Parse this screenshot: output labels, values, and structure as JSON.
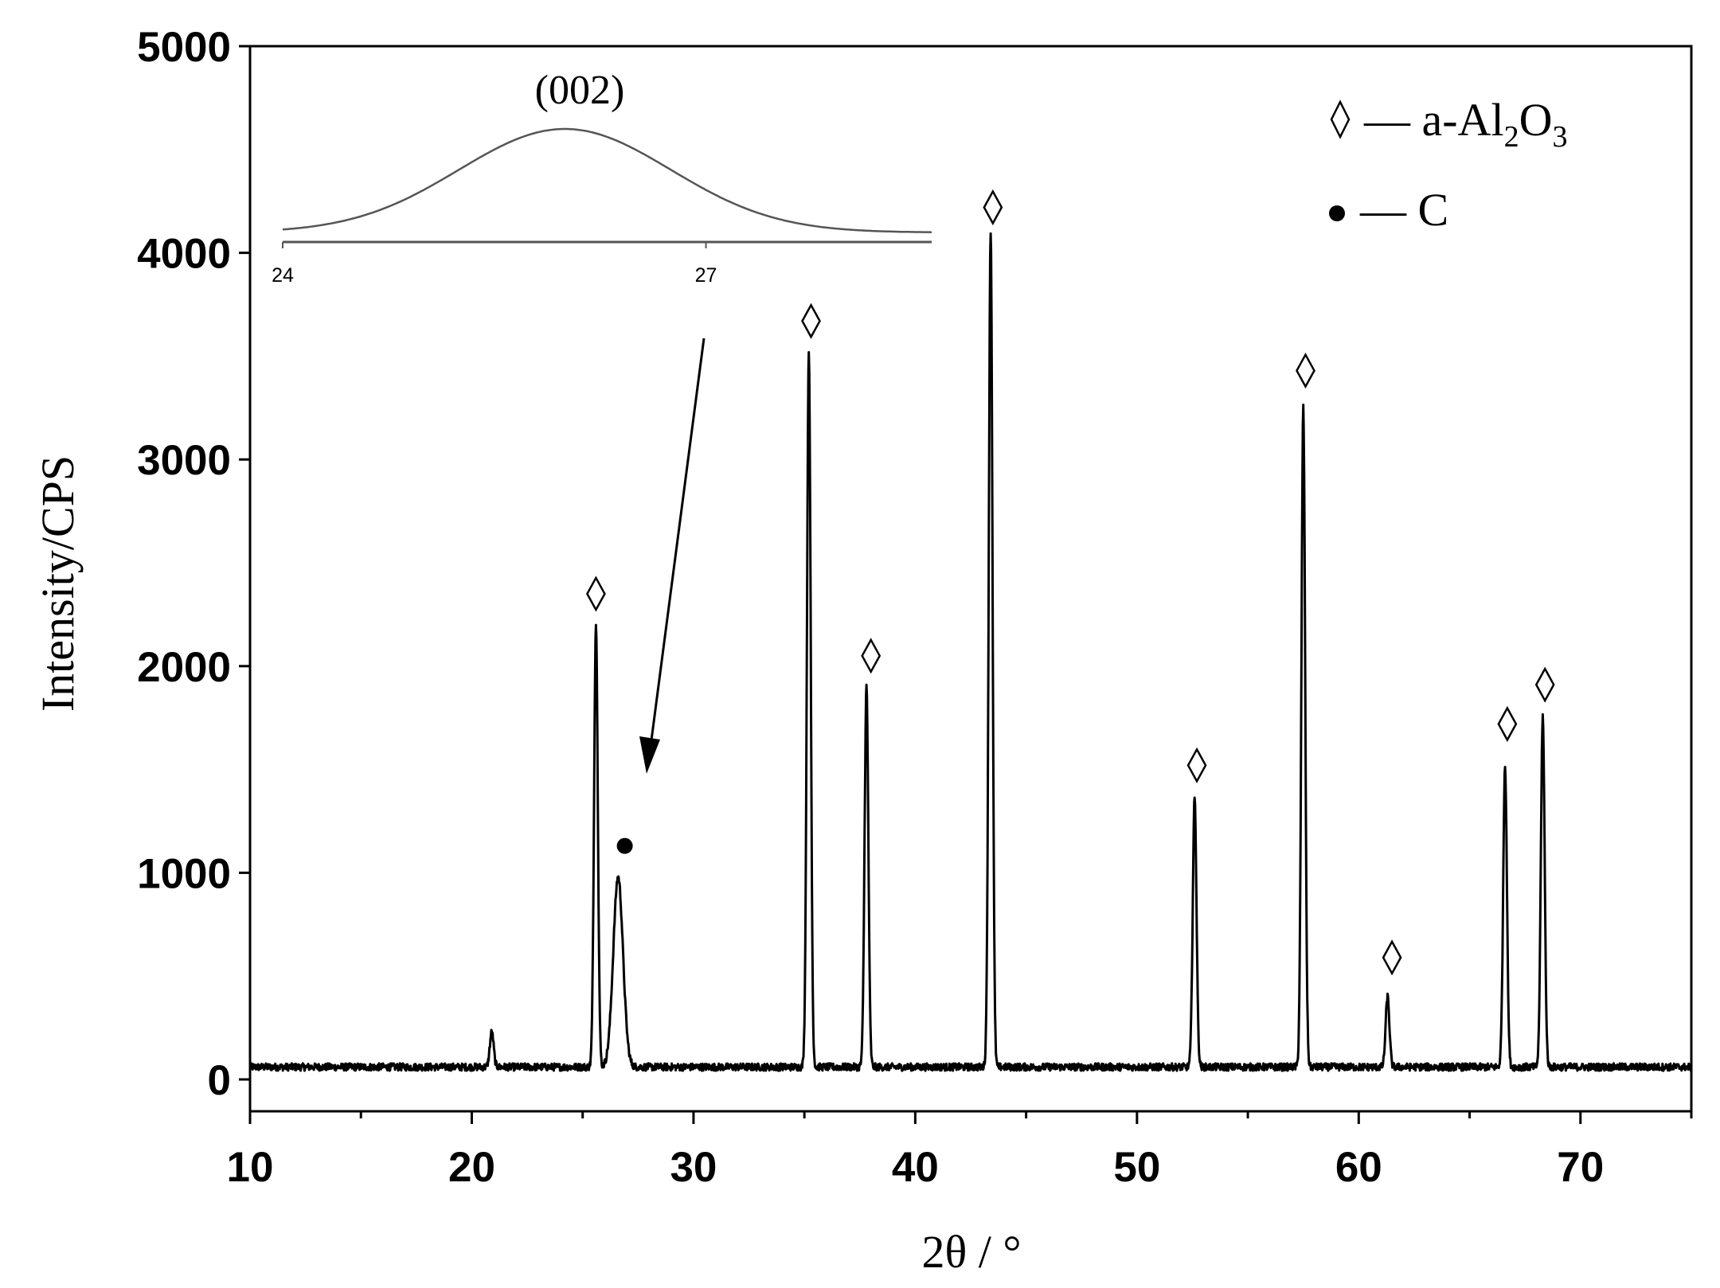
{
  "chart_data": {
    "type": "line",
    "xlabel": "2θ / °",
    "ylabel": "Intensity/CPS",
    "xlim": [
      10,
      75
    ],
    "ylim": [
      -150,
      5000
    ],
    "x_ticks": [
      10,
      20,
      30,
      40,
      50,
      60,
      70
    ],
    "y_ticks": [
      0,
      1000,
      2000,
      3000,
      4000,
      5000
    ],
    "grid": false,
    "legend_placement": "top-right",
    "legend": [
      {
        "marker": "diamond",
        "text": "— a-Al",
        "sub1": "2",
        "mid": "O",
        "sub2": "3"
      },
      {
        "marker": "dot",
        "text": "— C"
      }
    ],
    "series": [
      {
        "color": "#000000",
        "baseline": 60,
        "peaks": [
          {
            "x": 20.9,
            "y": 230
          },
          {
            "x": 25.6,
            "y": 2200
          },
          {
            "x": 26.6,
            "y": 980
          },
          {
            "x": 35.2,
            "y": 3530
          },
          {
            "x": 37.8,
            "y": 1900
          },
          {
            "x": 43.4,
            "y": 4110
          },
          {
            "x": 52.6,
            "y": 1360
          },
          {
            "x": 57.5,
            "y": 3250
          },
          {
            "x": 61.3,
            "y": 400
          },
          {
            "x": 66.6,
            "y": 1520
          },
          {
            "x": 68.3,
            "y": 1760
          }
        ]
      }
    ],
    "markers": [
      {
        "shape": "diamond",
        "x": 25.6,
        "y": 2350
      },
      {
        "shape": "dot",
        "x": 26.9,
        "y": 1130
      },
      {
        "shape": "diamond",
        "x": 35.3,
        "y": 3670
      },
      {
        "shape": "diamond",
        "x": 38.0,
        "y": 2050
      },
      {
        "shape": "diamond",
        "x": 43.5,
        "y": 4220
      },
      {
        "shape": "diamond",
        "x": 52.7,
        "y": 1520
      },
      {
        "shape": "diamond",
        "x": 57.6,
        "y": 3430
      },
      {
        "shape": "diamond",
        "x": 61.5,
        "y": 590
      },
      {
        "shape": "diamond",
        "x": 66.7,
        "y": 1720
      },
      {
        "shape": "diamond",
        "x": 68.4,
        "y": 1910
      }
    ],
    "inset": {
      "label": "(002)",
      "x_ticks": [
        24,
        27
      ],
      "xlim": [
        24,
        28.6
      ],
      "peak_center": 26.0,
      "peak_width": 0.75
    }
  }
}
